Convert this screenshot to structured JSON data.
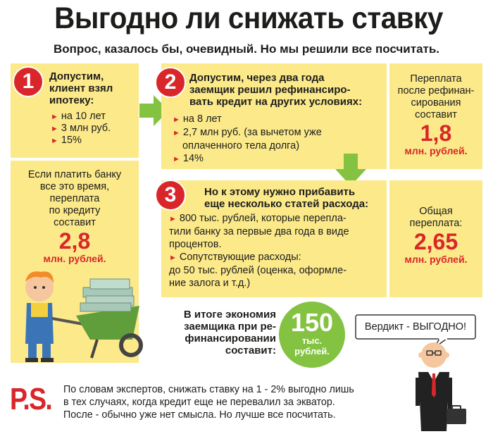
{
  "title": "Выгодно ли снижать ставку",
  "subtitle": "Вопрос, казалось бы, очевидный. Но мы решили все посчитать.",
  "step1": {
    "number": "1",
    "heading": [
      "Допустим,",
      "клиент взял",
      "ипотеку:"
    ],
    "items": [
      "на 10 лет",
      "3 млн руб.",
      "15%"
    ],
    "overpay_text": [
      "Если платить банку",
      "все это время,",
      "переплата",
      "по кредиту",
      "составит"
    ],
    "overpay_value": "2,8",
    "overpay_unit": "млн. рублей."
  },
  "step2": {
    "number": "2",
    "heading": [
      "Допустим, через два года",
      "заемщик решил рефинансиро-",
      "вать кредит на других условиях:"
    ],
    "items": [
      "на 8 лет",
      "2,7 млн руб. (за вычетом уже",
      "оплаченного тела долга)",
      "14%"
    ],
    "side_text": [
      "Переплата",
      "после рефинан-",
      "сирования",
      "составит"
    ],
    "side_value": "1,8",
    "side_unit": "млн. рублей."
  },
  "step3": {
    "number": "3",
    "heading": [
      "Но к этому нужно прибавить",
      "еще несколько статей расхода:"
    ],
    "lines": [
      "800 тыс. рублей, которые перепла-",
      "тили банку за первые два года в виде",
      "процентов.",
      "Сопутствующие расходы:",
      "до 50 тыс. рублей (оценка, оформле-",
      "ние залога и т.д.)"
    ],
    "side_text": [
      "Общая",
      "переплата:"
    ],
    "side_value": "2,65",
    "side_unit": "млн. рублей."
  },
  "result": {
    "text": [
      "В итоге экономия",
      "заемщика при ре-",
      "финансировании",
      "составит:"
    ],
    "value": "150",
    "unit_line1": "тыс.",
    "unit_line2": "рублей."
  },
  "verdict": "Вердикт - ВЫГОДНО!",
  "ps": {
    "label": "P.S.",
    "lines": [
      "По словам экспертов, снижать ставку на 1 - 2% выгодно лишь",
      "в тех случаях, когда кредит еще не перевалил за экватор.",
      "После - обычно уже нет смысла. Но лучше все посчитать."
    ]
  },
  "colors": {
    "panel": "#fbe98a",
    "accent_red": "#d9262a",
    "green": "#83c341"
  }
}
